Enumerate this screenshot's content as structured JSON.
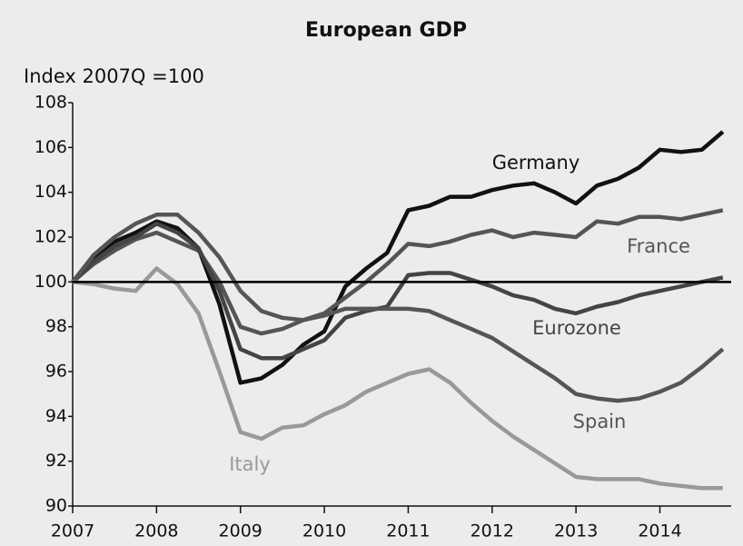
{
  "chart_data": {
    "type": "line",
    "title": "European GDP",
    "y_label": "Index 2007Q =100",
    "x": [
      2007,
      2007.25,
      2007.5,
      2007.75,
      2008,
      2008.25,
      2008.5,
      2008.75,
      2009,
      2009.25,
      2009.5,
      2009.75,
      2010,
      2010.25,
      2010.5,
      2010.75,
      2011,
      2011.25,
      2011.5,
      2011.75,
      2012,
      2012.25,
      2012.5,
      2012.75,
      2013,
      2013.25,
      2013.5,
      2013.75,
      2014,
      2014.25,
      2014.5,
      2014.75
    ],
    "series": [
      {
        "name": "Germany",
        "color": "#111111",
        "values": [
          100,
          101,
          101.8,
          102.2,
          102.7,
          102.4,
          101.5,
          99,
          95.5,
          95.7,
          96.3,
          97.2,
          97.8,
          99.8,
          100.6,
          101.3,
          103.2,
          103.4,
          103.8,
          103.8,
          104.1,
          104.3,
          104.4,
          104,
          103.5,
          104.3,
          104.6,
          105.1,
          105.9,
          105.8,
          105.9,
          106.7
        ]
      },
      {
        "name": "France",
        "color": "#555555",
        "values": [
          100,
          100.8,
          101.4,
          101.9,
          102.2,
          101.8,
          101.4,
          100,
          98,
          97.7,
          97.9,
          98.3,
          98.6,
          99.3,
          100,
          100.8,
          101.7,
          101.6,
          101.8,
          102.1,
          102.3,
          102,
          102.2,
          102.1,
          102,
          102.7,
          102.6,
          102.9,
          102.9,
          102.8,
          103,
          103.2
        ]
      },
      {
        "name": "Eurozone",
        "color": "#444444",
        "values": [
          100,
          100.9,
          101.6,
          102,
          102.6,
          102.2,
          101.5,
          99.6,
          97,
          96.6,
          96.6,
          97,
          97.4,
          98.4,
          98.7,
          98.9,
          100.3,
          100.4,
          100.4,
          100.1,
          99.8,
          99.4,
          99.2,
          98.8,
          98.6,
          98.9,
          99.1,
          99.4,
          99.6,
          99.8,
          100,
          100.2
        ]
      },
      {
        "name": "Spain",
        "color": "#555555",
        "values": [
          100,
          101.2,
          102,
          102.6,
          103,
          103,
          102.2,
          101.1,
          99.6,
          98.7,
          98.4,
          98.3,
          98.5,
          98.8,
          98.8,
          98.8,
          98.8,
          98.7,
          98.3,
          97.9,
          97.5,
          96.9,
          96.3,
          95.7,
          95,
          94.8,
          94.7,
          94.8,
          95.1,
          95.5,
          96.2,
          97
        ]
      },
      {
        "name": "Italy",
        "color": "#999999",
        "values": [
          100,
          99.9,
          99.7,
          99.6,
          100.6,
          99.9,
          98.6,
          96,
          93.3,
          93,
          93.5,
          93.6,
          94.1,
          94.5,
          95.1,
          95.5,
          95.9,
          96.1,
          95.5,
          94.6,
          93.8,
          93.1,
          92.5,
          91.9,
          91.3,
          91.2,
          91.2,
          91.2,
          91,
          90.9,
          90.8,
          90.8
        ]
      }
    ],
    "reference_line": 100,
    "xlim": [
      2007,
      2014.85
    ],
    "xticks": [
      2007,
      2008,
      2009,
      2010,
      2011,
      2012,
      2013,
      2014
    ],
    "ylim": [
      90,
      108
    ],
    "yticks": [
      90,
      92,
      94,
      96,
      98,
      100,
      102,
      104,
      106,
      108
    ]
  }
}
